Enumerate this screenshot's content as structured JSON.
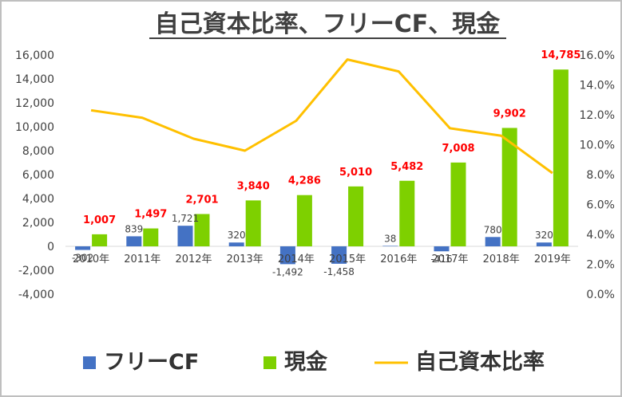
{
  "chart_data": {
    "type": "bar+line",
    "title": "自己資本比率、フリーCF、現金",
    "categories": [
      "2010年",
      "2011年",
      "2012年",
      "2013年",
      "2014年",
      "2015年",
      "2016年",
      "2017年",
      "2018年",
      "2019年"
    ],
    "series": [
      {
        "name": "フリーCF",
        "type": "bar",
        "axis": "left",
        "color": "#4472c4",
        "values": [
          -302,
          839,
          1721,
          320,
          -1492,
          -1458,
          38,
          -416,
          780,
          320
        ],
        "labels": [
          "-302",
          "839",
          "1,721",
          "320",
          "-1,492",
          "-1,458",
          "38",
          "-416",
          "780",
          "320"
        ]
      },
      {
        "name": "現金",
        "type": "bar",
        "axis": "left",
        "color": "#7ed000",
        "values": [
          1007,
          1497,
          2701,
          3840,
          4286,
          5010,
          5482,
          7008,
          9902,
          14785
        ],
        "labels": [
          "1,007",
          "1,497",
          "2,701",
          "3,840",
          "4,286",
          "5,010",
          "5,482",
          "7,008",
          "9,902",
          "14,785"
        ],
        "label_color": "#ff0000"
      },
      {
        "name": "自己資本比率",
        "type": "line",
        "axis": "right",
        "color": "#ffc000",
        "values": [
          12.3,
          11.8,
          10.4,
          9.6,
          11.6,
          15.7,
          14.9,
          11.1,
          10.6,
          8.1
        ]
      }
    ],
    "y_left": {
      "min": -4000,
      "max": 16000,
      "step": 2000,
      "ticks": [
        "-4,000",
        "-2,000",
        "0",
        "2,000",
        "4,000",
        "6,000",
        "8,000",
        "10,000",
        "12,000",
        "14,000",
        "16,000"
      ]
    },
    "y_right": {
      "min": 0,
      "max": 16,
      "step": 2,
      "ticks": [
        "0.0%",
        "2.0%",
        "4.0%",
        "6.0%",
        "8.0%",
        "10.0%",
        "12.0%",
        "14.0%",
        "16.0%"
      ]
    },
    "grid": false,
    "legend": "bottom"
  }
}
